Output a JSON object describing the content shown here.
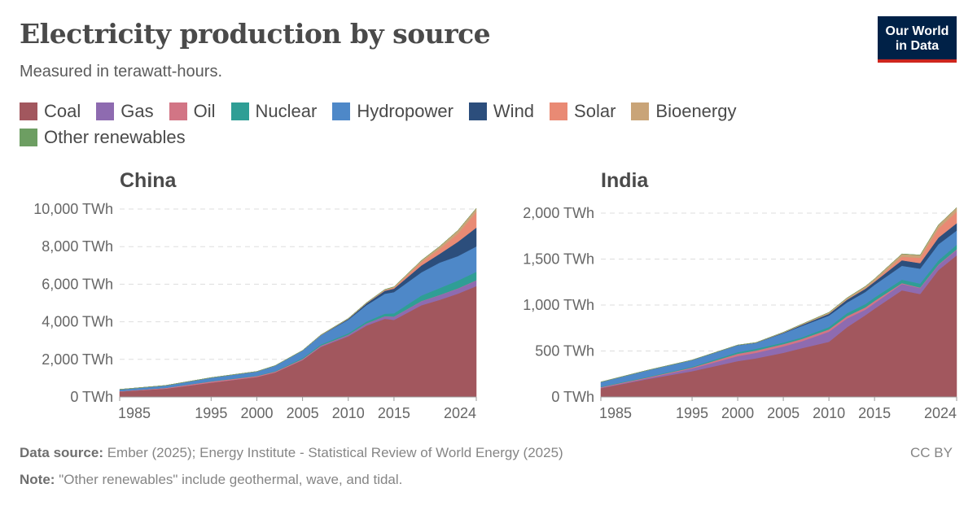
{
  "header": {
    "title": "Electricity production by source",
    "subtitle": "Measured in terawatt-hours.",
    "logo": "Our World in Data"
  },
  "legend": [
    {
      "label": "Coal",
      "color": "#a2575e"
    },
    {
      "label": "Gas",
      "color": "#8e6bb0"
    },
    {
      "label": "Oil",
      "color": "#d27585"
    },
    {
      "label": "Nuclear",
      "color": "#2f9e95"
    },
    {
      "label": "Hydropower",
      "color": "#4e88c8"
    },
    {
      "label": "Wind",
      "color": "#2c4e7c"
    },
    {
      "label": "Solar",
      "color": "#e98a74"
    },
    {
      "label": "Bioenergy",
      "color": "#c9a478"
    },
    {
      "label": "Other renewables",
      "color": "#6d9e62"
    }
  ],
  "footer": {
    "source_label": "Data source:",
    "source": "Ember (2025); Energy Institute - Statistical Review of World Energy (2025)",
    "note_label": "Note:",
    "note": "\"Other renewables\" include geothermal, wave, and tidal.",
    "license": "CC BY"
  },
  "chart_data": [
    {
      "type": "area",
      "stacked": true,
      "title": "China",
      "ylim": [
        0,
        10000
      ],
      "yticks": [
        0,
        2000,
        4000,
        6000,
        8000,
        10000
      ],
      "ytick_labels": [
        "0 TWh",
        "2,000 TWh",
        "4,000 TWh",
        "6,000 TWh",
        "8,000 TWh",
        "10,000 TWh"
      ],
      "xticks": [
        1985,
        1995,
        2000,
        2005,
        2010,
        2015,
        2024
      ],
      "xlim": [
        1985,
        2024
      ],
      "grid": "horizontal dashed",
      "x": [
        1985,
        1990,
        1995,
        2000,
        2002,
        2005,
        2007,
        2010,
        2012,
        2014,
        2015,
        2018,
        2020,
        2022,
        2024
      ],
      "series": [
        {
          "name": "Coal",
          "values": [
            290,
            440,
            760,
            1060,
            1300,
            1960,
            2660,
            3230,
            3800,
            4160,
            4100,
            4880,
            5170,
            5500,
            5900
          ]
        },
        {
          "name": "Gas",
          "values": [
            0,
            3,
            5,
            5,
            6,
            20,
            40,
            70,
            110,
            130,
            170,
            215,
            250,
            270,
            300
          ]
        },
        {
          "name": "Oil",
          "values": [
            20,
            40,
            60,
            50,
            45,
            40,
            30,
            13,
            8,
            8,
            8,
            10,
            10,
            10,
            10
          ]
        },
        {
          "name": "Nuclear",
          "values": [
            0,
            0,
            13,
            17,
            25,
            53,
            62,
            74,
            97,
            133,
            171,
            295,
            366,
            418,
            450
          ]
        },
        {
          "name": "Hydropower",
          "values": [
            92,
            127,
            190,
            222,
            288,
            397,
            485,
            722,
            872,
            1064,
            1130,
            1232,
            1355,
            1300,
            1350
          ]
        },
        {
          "name": "Wind",
          "values": [
            0,
            0,
            0,
            1,
            1,
            2,
            6,
            45,
            96,
            156,
            186,
            366,
            467,
            763,
            1000
          ]
        },
        {
          "name": "Solar",
          "values": [
            0,
            0,
            0,
            0,
            0,
            0,
            0,
            1,
            4,
            24,
            45,
            177,
            261,
            428,
            830
          ]
        },
        {
          "name": "Bioenergy",
          "values": [
            0,
            0,
            0,
            2,
            3,
            5,
            20,
            25,
            35,
            46,
            53,
            91,
            135,
            180,
            200
          ]
        },
        {
          "name": "Other renewables",
          "values": [
            0,
            0,
            0,
            0,
            0,
            0,
            0,
            0,
            0,
            0,
            0,
            0,
            0,
            0,
            0
          ]
        }
      ]
    },
    {
      "type": "area",
      "stacked": true,
      "title": "India",
      "ylim": [
        0,
        2000
      ],
      "yticks": [
        0,
        500,
        1000,
        1500,
        2000
      ],
      "ytick_labels": [
        "0 TWh",
        "500 TWh",
        "1,000 TWh",
        "1,500 TWh",
        "2,000 TWh"
      ],
      "xticks": [
        1985,
        1995,
        2000,
        2005,
        2010,
        2015,
        2024
      ],
      "xlim": [
        1985,
        2024
      ],
      "grid": "horizontal dashed",
      "x": [
        1985,
        1990,
        1995,
        2000,
        2002,
        2005,
        2007,
        2010,
        2012,
        2014,
        2015,
        2018,
        2020,
        2022,
        2024
      ],
      "series": [
        {
          "name": "Coal",
          "values": [
            95,
            192,
            280,
            390,
            420,
            480,
            530,
            600,
            760,
            890,
            960,
            1160,
            1120,
            1380,
            1540
          ]
        },
        {
          "name": "Gas",
          "values": [
            5,
            10,
            30,
            55,
            60,
            70,
            75,
            110,
            95,
            60,
            60,
            70,
            65,
            55,
            60
          ]
        },
        {
          "name": "Oil",
          "values": [
            7,
            8,
            10,
            25,
            25,
            25,
            25,
            25,
            25,
            25,
            25,
            8,
            5,
            5,
            5
          ]
        },
        {
          "name": "Nuclear",
          "values": [
            5,
            6,
            8,
            17,
            19,
            17,
            17,
            26,
            33,
            36,
            37,
            38,
            43,
            46,
            50
          ]
        },
        {
          "name": "Hydropower",
          "values": [
            51,
            72,
            73,
            75,
            64,
            101,
            124,
            124,
            116,
            132,
            138,
            151,
            163,
            175,
            155
          ]
        },
        {
          "name": "Wind",
          "values": [
            0,
            0,
            1,
            2,
            2,
            6,
            12,
            20,
            30,
            34,
            33,
            60,
            60,
            72,
            80
          ]
        },
        {
          "name": "Solar",
          "values": [
            0,
            0,
            0,
            0,
            0,
            0,
            0,
            0,
            2,
            5,
            7,
            39,
            58,
            100,
            125
          ]
        },
        {
          "name": "Bioenergy",
          "values": [
            0,
            0,
            0,
            1,
            2,
            5,
            8,
            15,
            18,
            22,
            25,
            30,
            30,
            38,
            45
          ]
        },
        {
          "name": "Other renewables",
          "values": [
            0,
            0,
            0,
            0,
            0,
            0,
            0,
            0,
            0,
            0,
            0,
            0,
            0,
            0,
            0
          ]
        }
      ]
    }
  ]
}
